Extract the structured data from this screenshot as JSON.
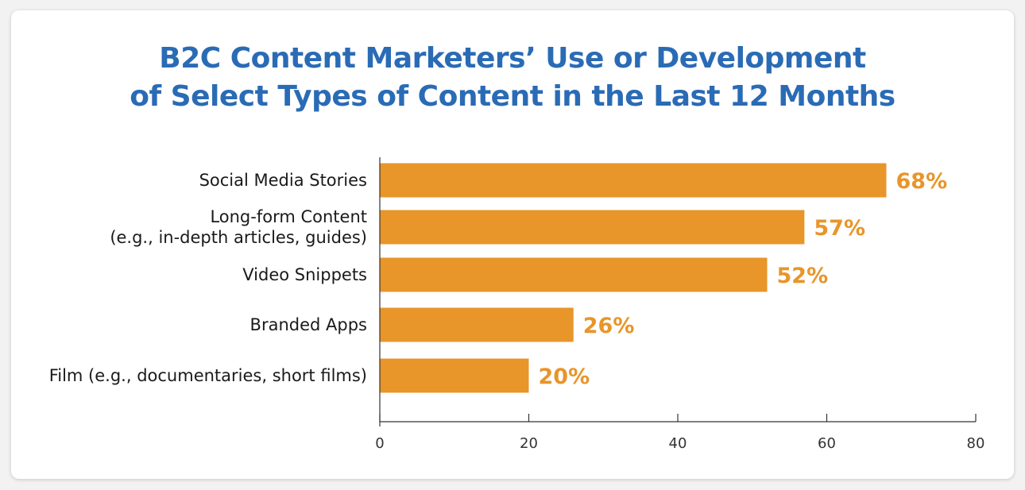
{
  "chart_data": {
    "type": "bar",
    "orientation": "horizontal",
    "title_lines": [
      "B2C Content Marketers’ Use or Development",
      "of Select Types of Content in the Last 12 Months"
    ],
    "categories": [
      [
        "Social Media Stories"
      ],
      [
        "Long-form Content",
        "(e.g., in-depth articles, guides)"
      ],
      [
        "Video Snippets"
      ],
      [
        "Branded Apps"
      ],
      [
        "Film (e.g., documentaries, short films)"
      ]
    ],
    "values": [
      68,
      57,
      52,
      26,
      20
    ],
    "value_labels": [
      "68%",
      "57%",
      "52%",
      "26%",
      "20%"
    ],
    "xlim": [
      0,
      80
    ],
    "xticks": [
      0,
      20,
      40,
      60,
      80
    ],
    "xtick_labels": [
      "0",
      "20",
      "40",
      "60",
      "80"
    ],
    "grid": false,
    "bar_color": "#e8952a",
    "title_color": "#2a6bb5"
  }
}
